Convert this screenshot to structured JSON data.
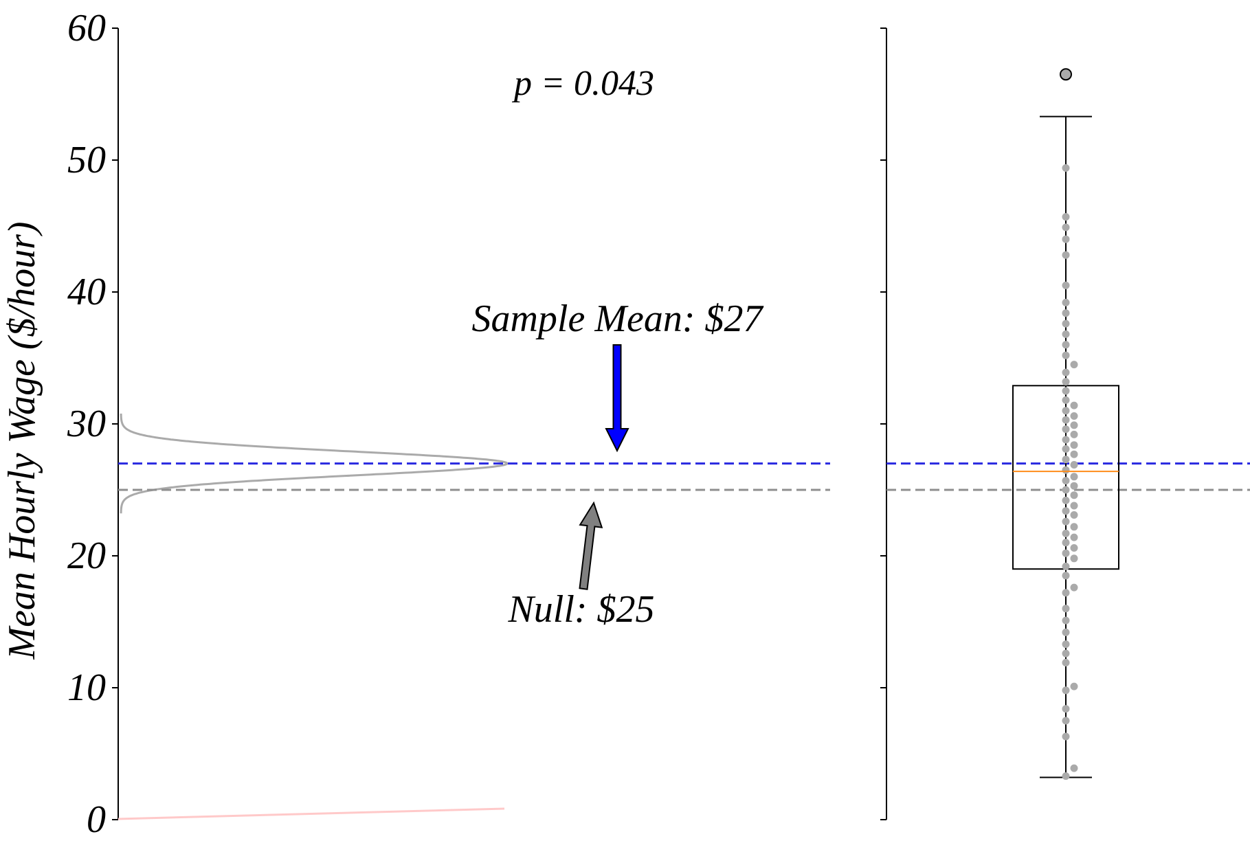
{
  "chart_data": {
    "type": "distribution-boxplot",
    "ylabel": "Mean Hourly Wage ($/hour)",
    "ylim": [
      0,
      60
    ],
    "yticks": [
      0,
      10,
      20,
      30,
      40,
      50,
      60
    ],
    "p_value_label": "p = 0.043",
    "sample_mean": 27,
    "null_mean": 25,
    "annotations": {
      "sample_mean_label": "Sample Mean: $27",
      "null_label": "Null: $25"
    },
    "sampling_distribution": {
      "center": 27,
      "sd": 0.9
    },
    "boxplot": {
      "whisker_low": 3.2,
      "q1": 19.0,
      "median": 26.4,
      "q3": 32.9,
      "whisker_high": 53.3,
      "outliers": [
        56.5
      ]
    },
    "sample_points": [
      3.3,
      3.9,
      6.3,
      7.5,
      8.4,
      9.8,
      10.1,
      11.9,
      12.6,
      13.3,
      14.2,
      15.1,
      16.0,
      17.2,
      17.6,
      18.5,
      19.2,
      19.8,
      20.2,
      20.6,
      21.0,
      21.4,
      21.7,
      22.2,
      22.6,
      23.1,
      23.4,
      23.8,
      24.2,
      24.6,
      25.0,
      25.3,
      25.7,
      26.0,
      26.5,
      26.9,
      27.3,
      27.7,
      28.1,
      28.4,
      28.8,
      29.2,
      29.6,
      29.9,
      30.3,
      30.6,
      31.0,
      31.4,
      31.8,
      32.5,
      33.2,
      33.9,
      34.5,
      35.2,
      36.0,
      36.8,
      37.6,
      38.4,
      39.2,
      40.5,
      42.8,
      44.0,
      44.9,
      45.7,
      49.4
    ]
  }
}
